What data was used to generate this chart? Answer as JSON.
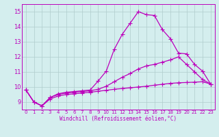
{
  "title": "",
  "xlabel": "Windchill (Refroidissement éolien,°C)",
  "xlim": [
    -0.5,
    23.5
  ],
  "ylim": [
    8.5,
    15.5
  ],
  "xticks": [
    0,
    1,
    2,
    3,
    4,
    5,
    6,
    7,
    8,
    9,
    10,
    11,
    12,
    13,
    14,
    15,
    16,
    17,
    18,
    19,
    20,
    21,
    22,
    23
  ],
  "yticks": [
    9,
    10,
    11,
    12,
    13,
    14,
    15
  ],
  "background_color": "#d4eeee",
  "grid_color": "#b0cccc",
  "line_color": "#bb00bb",
  "line1": [
    9.8,
    9.0,
    8.75,
    9.3,
    9.55,
    9.65,
    9.7,
    9.75,
    9.8,
    10.4,
    11.05,
    12.5,
    13.5,
    14.25,
    15.0,
    14.8,
    14.75,
    13.8,
    13.2,
    12.25,
    12.2,
    11.5,
    11.05,
    10.2
  ],
  "line2": [
    9.8,
    9.0,
    8.75,
    9.3,
    9.5,
    9.6,
    9.65,
    9.7,
    9.75,
    9.85,
    10.05,
    10.35,
    10.65,
    10.9,
    11.2,
    11.4,
    11.5,
    11.65,
    11.8,
    12.0,
    11.5,
    11.0,
    10.5,
    10.2
  ],
  "line3": [
    9.8,
    9.0,
    8.75,
    9.2,
    9.4,
    9.5,
    9.55,
    9.6,
    9.65,
    9.72,
    9.78,
    9.85,
    9.9,
    9.95,
    10.0,
    10.05,
    10.12,
    10.18,
    10.24,
    10.28,
    10.3,
    10.32,
    10.35,
    10.2
  ]
}
